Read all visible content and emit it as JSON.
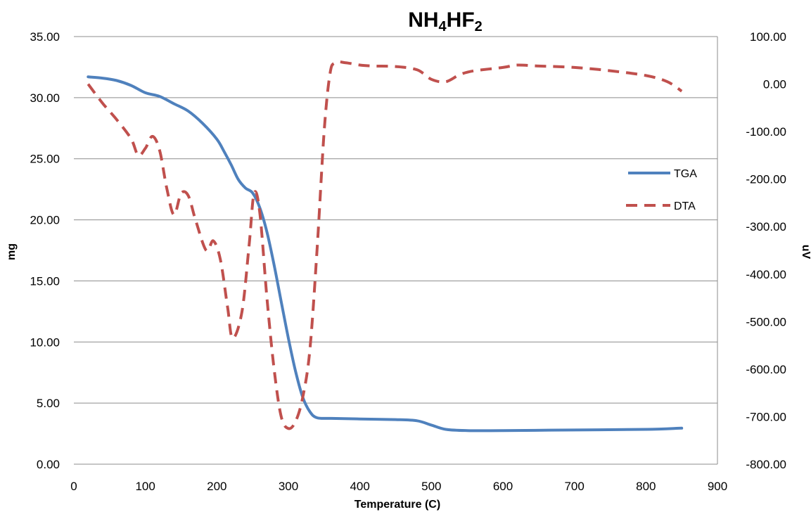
{
  "chart_data": {
    "type": "line",
    "title": {
      "parts": [
        {
          "text": "NH",
          "sub": false
        },
        {
          "text": "4",
          "sub": true
        },
        {
          "text": "HF",
          "sub": false
        },
        {
          "text": "2",
          "sub": true
        }
      ]
    },
    "xlabel": "Temperature (C)",
    "ylabel_left": "mg",
    "ylabel_right": "uV",
    "xlim": [
      0,
      900
    ],
    "ylim_left": [
      0,
      35
    ],
    "ylim_right": [
      -800,
      100
    ],
    "x_ticks": [
      0,
      100,
      200,
      300,
      400,
      500,
      600,
      700,
      800,
      900
    ],
    "y_left_ticks": [
      "0.00",
      "5.00",
      "10.00",
      "15.00",
      "20.00",
      "25.00",
      "30.00",
      "35.00"
    ],
    "y_right_ticks": [
      "-800.00",
      "-700.00",
      "-600.00",
      "-500.00",
      "-400.00",
      "-300.00",
      "-200.00",
      "-100.00",
      "0.00",
      "100.00"
    ],
    "grid": "horizontal",
    "legend_position": "right",
    "series": [
      {
        "name": "TGA",
        "axis": "left",
        "color": "#4f81bd",
        "style": "solid",
        "points": [
          [
            20,
            31.7
          ],
          [
            40,
            31.6
          ],
          [
            60,
            31.4
          ],
          [
            80,
            31.0
          ],
          [
            100,
            30.4
          ],
          [
            120,
            30.1
          ],
          [
            140,
            29.5
          ],
          [
            160,
            28.9
          ],
          [
            180,
            27.9
          ],
          [
            200,
            26.6
          ],
          [
            210,
            25.6
          ],
          [
            220,
            24.5
          ],
          [
            230,
            23.3
          ],
          [
            240,
            22.6
          ],
          [
            250,
            22.2
          ],
          [
            260,
            21.0
          ],
          [
            270,
            19.0
          ],
          [
            280,
            16.3
          ],
          [
            290,
            13.3
          ],
          [
            300,
            10.3
          ],
          [
            310,
            7.6
          ],
          [
            320,
            5.5
          ],
          [
            330,
            4.3
          ],
          [
            340,
            3.8
          ],
          [
            360,
            3.75
          ],
          [
            400,
            3.7
          ],
          [
            450,
            3.65
          ],
          [
            480,
            3.55
          ],
          [
            500,
            3.2
          ],
          [
            520,
            2.85
          ],
          [
            550,
            2.75
          ],
          [
            600,
            2.75
          ],
          [
            700,
            2.8
          ],
          [
            800,
            2.85
          ],
          [
            850,
            2.95
          ]
        ]
      },
      {
        "name": "DTA",
        "axis": "right",
        "color": "#c0504d",
        "style": "dashed",
        "points": [
          [
            20,
            0
          ],
          [
            40,
            -40
          ],
          [
            60,
            -75
          ],
          [
            80,
            -115
          ],
          [
            90,
            -150
          ],
          [
            100,
            -135
          ],
          [
            110,
            -110
          ],
          [
            120,
            -140
          ],
          [
            130,
            -220
          ],
          [
            140,
            -275
          ],
          [
            150,
            -230
          ],
          [
            160,
            -235
          ],
          [
            170,
            -285
          ],
          [
            185,
            -350
          ],
          [
            195,
            -330
          ],
          [
            205,
            -370
          ],
          [
            215,
            -470
          ],
          [
            222,
            -535
          ],
          [
            235,
            -480
          ],
          [
            245,
            -340
          ],
          [
            252,
            -230
          ],
          [
            260,
            -270
          ],
          [
            270,
            -450
          ],
          [
            280,
            -600
          ],
          [
            290,
            -700
          ],
          [
            300,
            -725
          ],
          [
            310,
            -710
          ],
          [
            320,
            -660
          ],
          [
            330,
            -560
          ],
          [
            340,
            -350
          ],
          [
            350,
            -100
          ],
          [
            358,
            20
          ],
          [
            365,
            45
          ],
          [
            380,
            45
          ],
          [
            400,
            40
          ],
          [
            420,
            38
          ],
          [
            450,
            37
          ],
          [
            480,
            30
          ],
          [
            500,
            10
          ],
          [
            520,
            5
          ],
          [
            540,
            20
          ],
          [
            560,
            28
          ],
          [
            600,
            35
          ],
          [
            620,
            40
          ],
          [
            650,
            38
          ],
          [
            700,
            35
          ],
          [
            750,
            28
          ],
          [
            800,
            18
          ],
          [
            830,
            5
          ],
          [
            850,
            -15
          ]
        ]
      }
    ]
  }
}
